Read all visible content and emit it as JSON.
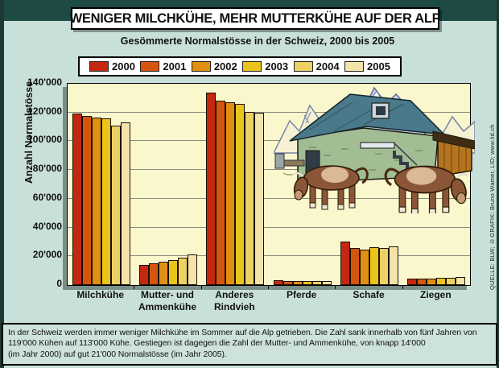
{
  "title": "WENIGER MILCHKÜHE, MEHR MUTTERKÜHE AUF DER ALP",
  "subtitle": "Gesömmerte Normalstösse in der Schweiz, 2000 bis 2005",
  "source_note": "QUELLE: BLW; ©GRAFIK: Bruno Wamer, LID; www.lid.ch",
  "footer": {
    "lines": [
      "In der Schweiz werden immer weniger Milchkühe im Sommer auf die Alp getrieben. Die Zahl sank innerhalb von fünf Jahren von",
      "119'000 Kühen auf 113'000 Kühe. Gestiegen ist dagegen die Zahl der Mutter- und Ammenkühe, von knapp 14'000",
      "(im Jahr 2000) auf gut 21'000 Normalstösse (im Jahr 2005)."
    ]
  },
  "chart_data": {
    "type": "bar",
    "title": "Gesömmerte Normalstösse in der Schweiz, 2000 bis 2005",
    "ylabel": "Anzahl Normalstösse",
    "xlabel": "",
    "ylim": [
      0,
      140000
    ],
    "ytick_interval": 20000,
    "ytick_labels_top_to_bottom": [
      "140'000",
      "120'000",
      "100'000",
      "80'000",
      "60'000",
      "40'000",
      "20'000",
      "0"
    ],
    "grid": true,
    "legend_position": "top",
    "categories": [
      "Milchkühe",
      "Mutter- und Ammenkühe",
      "Anderes Rindvieh",
      "Pferde",
      "Schafe",
      "Ziegen"
    ],
    "category_label_lines": [
      [
        "Milchkühe"
      ],
      [
        "Mutter- und",
        "Ammenkühe"
      ],
      [
        "Anderes",
        "Rindvieh"
      ],
      [
        "Pferde"
      ],
      [
        "Schafe"
      ],
      [
        "Ziegen"
      ]
    ],
    "series": [
      {
        "name": "2000",
        "color": "#c52711",
        "values": [
          119000,
          14000,
          134000,
          3500,
          30000,
          4500
        ]
      },
      {
        "name": "2001",
        "color": "#d4560e",
        "values": [
          117500,
          15000,
          128500,
          3000,
          26000,
          4200
        ]
      },
      {
        "name": "2002",
        "color": "#e18f12",
        "values": [
          116500,
          16000,
          127000,
          3000,
          24500,
          4500
        ]
      },
      {
        "name": "2003",
        "color": "#e9c41b",
        "values": [
          116000,
          17500,
          126000,
          3000,
          26500,
          5000
        ]
      },
      {
        "name": "2004",
        "color": "#ecd163",
        "values": [
          111000,
          19000,
          120500,
          3000,
          26000,
          5000
        ]
      },
      {
        "name": "2005",
        "color": "#f2e4aa",
        "values": [
          113000,
          21000,
          120000,
          3000,
          27000,
          5500
        ]
      }
    ]
  },
  "colors": {
    "header_bar": "#1e4a44",
    "background": "#c9e0da",
    "plot_background": "#faf7cd",
    "gridline": "#8b8b80",
    "bar_outline": "#1a1005",
    "box_border": "#000000"
  }
}
